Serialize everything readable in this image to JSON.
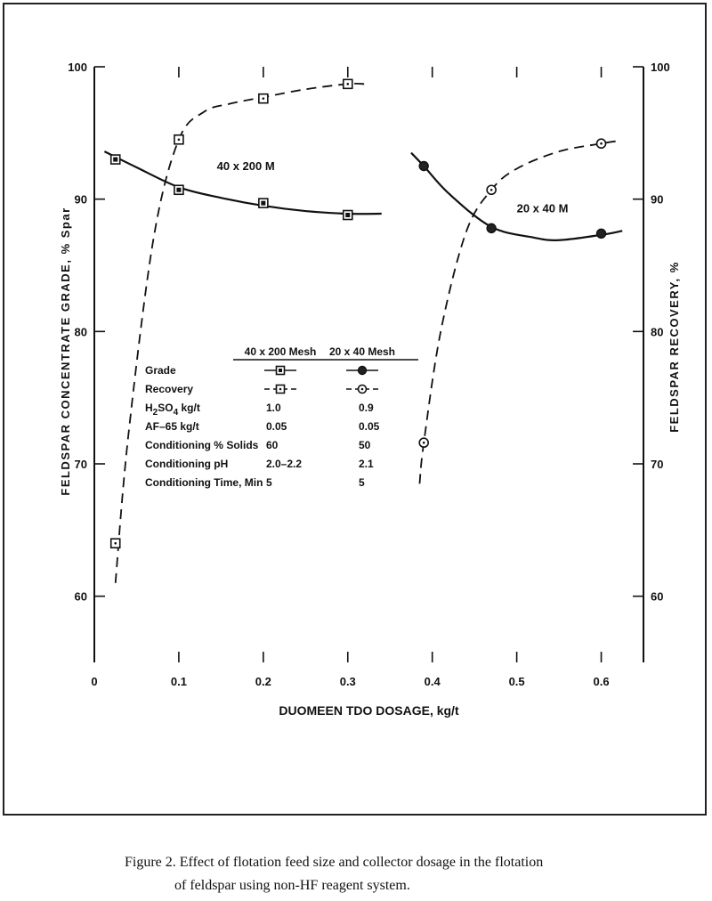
{
  "chart_data": {
    "type": "line",
    "xlabel": "DUOMEEN TDO DOSAGE,  kg/t",
    "ylabel_left": "FELDSPAR CONCENTRATE GRADE, % Spar",
    "ylabel_right": "FELDSPAR RECOVERY, %",
    "xlim": [
      0,
      0.65
    ],
    "ylim": [
      55,
      100
    ],
    "x_ticks": [
      "0",
      "0.1",
      "0.2",
      "0.3",
      "0.4",
      "0.5",
      "0.6"
    ],
    "y_ticks_left": [
      "100",
      "90",
      "80",
      "70",
      "60"
    ],
    "y_ticks_right": [
      "100",
      "90",
      "80",
      "70",
      "60"
    ],
    "series": [
      {
        "name": "40 x 200 M",
        "kind": "Grade",
        "marker": "filled-square",
        "line": "solid",
        "color": "#111111",
        "x": [
          0.025,
          0.1,
          0.2,
          0.3
        ],
        "y": [
          93.0,
          90.7,
          89.7,
          88.8
        ],
        "curve_x": [
          0.012,
          0.05,
          0.1,
          0.15,
          0.2,
          0.25,
          0.3,
          0.34
        ],
        "curve_y": [
          93.6,
          92.4,
          90.9,
          90.1,
          89.5,
          89.1,
          88.9,
          88.9
        ]
      },
      {
        "name": "40 x 200 M",
        "kind": "Recovery",
        "marker": "open-square",
        "line": "dashed",
        "color": "#111111",
        "x": [
          0.025,
          0.1,
          0.2,
          0.3
        ],
        "y": [
          64.0,
          94.5,
          97.6,
          98.7
        ],
        "curve_x": [
          0.025,
          0.04,
          0.07,
          0.1,
          0.13,
          0.16,
          0.2,
          0.25,
          0.3,
          0.32
        ],
        "curve_y": [
          61.0,
          72.0,
          87.0,
          94.5,
          96.6,
          97.2,
          97.7,
          98.3,
          98.7,
          98.7
        ]
      },
      {
        "name": "20 x 40 M",
        "kind": "Grade",
        "marker": "filled-circle",
        "line": "solid",
        "color": "#111111",
        "x": [
          0.39,
          0.47,
          0.6
        ],
        "y": [
          92.5,
          87.8,
          87.4
        ],
        "curve_x": [
          0.375,
          0.39,
          0.42,
          0.47,
          0.52,
          0.55,
          0.6,
          0.625
        ],
        "curve_y": [
          93.5,
          92.5,
          90.4,
          87.9,
          87.1,
          86.9,
          87.3,
          87.6
        ]
      },
      {
        "name": "20 x 40 M",
        "kind": "Recovery",
        "marker": "open-circle",
        "line": "dashed",
        "color": "#111111",
        "x": [
          0.39,
          0.47,
          0.6
        ],
        "y": [
          71.6,
          90.7,
          94.2
        ],
        "curve_x": [
          0.385,
          0.39,
          0.41,
          0.44,
          0.47,
          0.5,
          0.55,
          0.6,
          0.62
        ],
        "curve_y": [
          68.5,
          71.6,
          80.0,
          87.5,
          90.7,
          92.3,
          93.6,
          94.2,
          94.4
        ]
      }
    ],
    "annotations": [
      {
        "text": "40 x 200 M",
        "x": 0.145,
        "y": 92.2
      },
      {
        "text": "20 x 40 M",
        "x": 0.5,
        "y": 89.0
      }
    ],
    "legend_table": {
      "headers": [
        "40 x 200 Mesh",
        "20 x 40 Mesh"
      ],
      "rows": [
        {
          "label": "Grade",
          "v1": "",
          "v2": "",
          "symbol1": "filled-square",
          "symbol2": "filled-circle"
        },
        {
          "label": "Recovery",
          "v1": "",
          "v2": "",
          "symbol1": "open-square",
          "symbol2": "open-circle"
        },
        {
          "label": "H2SO4  kg/t",
          "v1": "1.0",
          "v2": "0.9"
        },
        {
          "label": "AF–65 kg/t",
          "v1": "0.05",
          "v2": "0.05"
        },
        {
          "label": "Conditioning % Solids",
          "v1": "60",
          "v2": "50"
        },
        {
          "label": "Conditioning pH",
          "v1": "2.0–2.2",
          "v2": "2.1"
        },
        {
          "label": "Conditioning Time, Min",
          "v1": "5",
          "v2": "5"
        }
      ]
    }
  },
  "caption": {
    "line1": "Figure 2.  Effect of flotation feed size and collector dosage in the flotation",
    "line2": "of feldspar using non-HF reagent system."
  }
}
